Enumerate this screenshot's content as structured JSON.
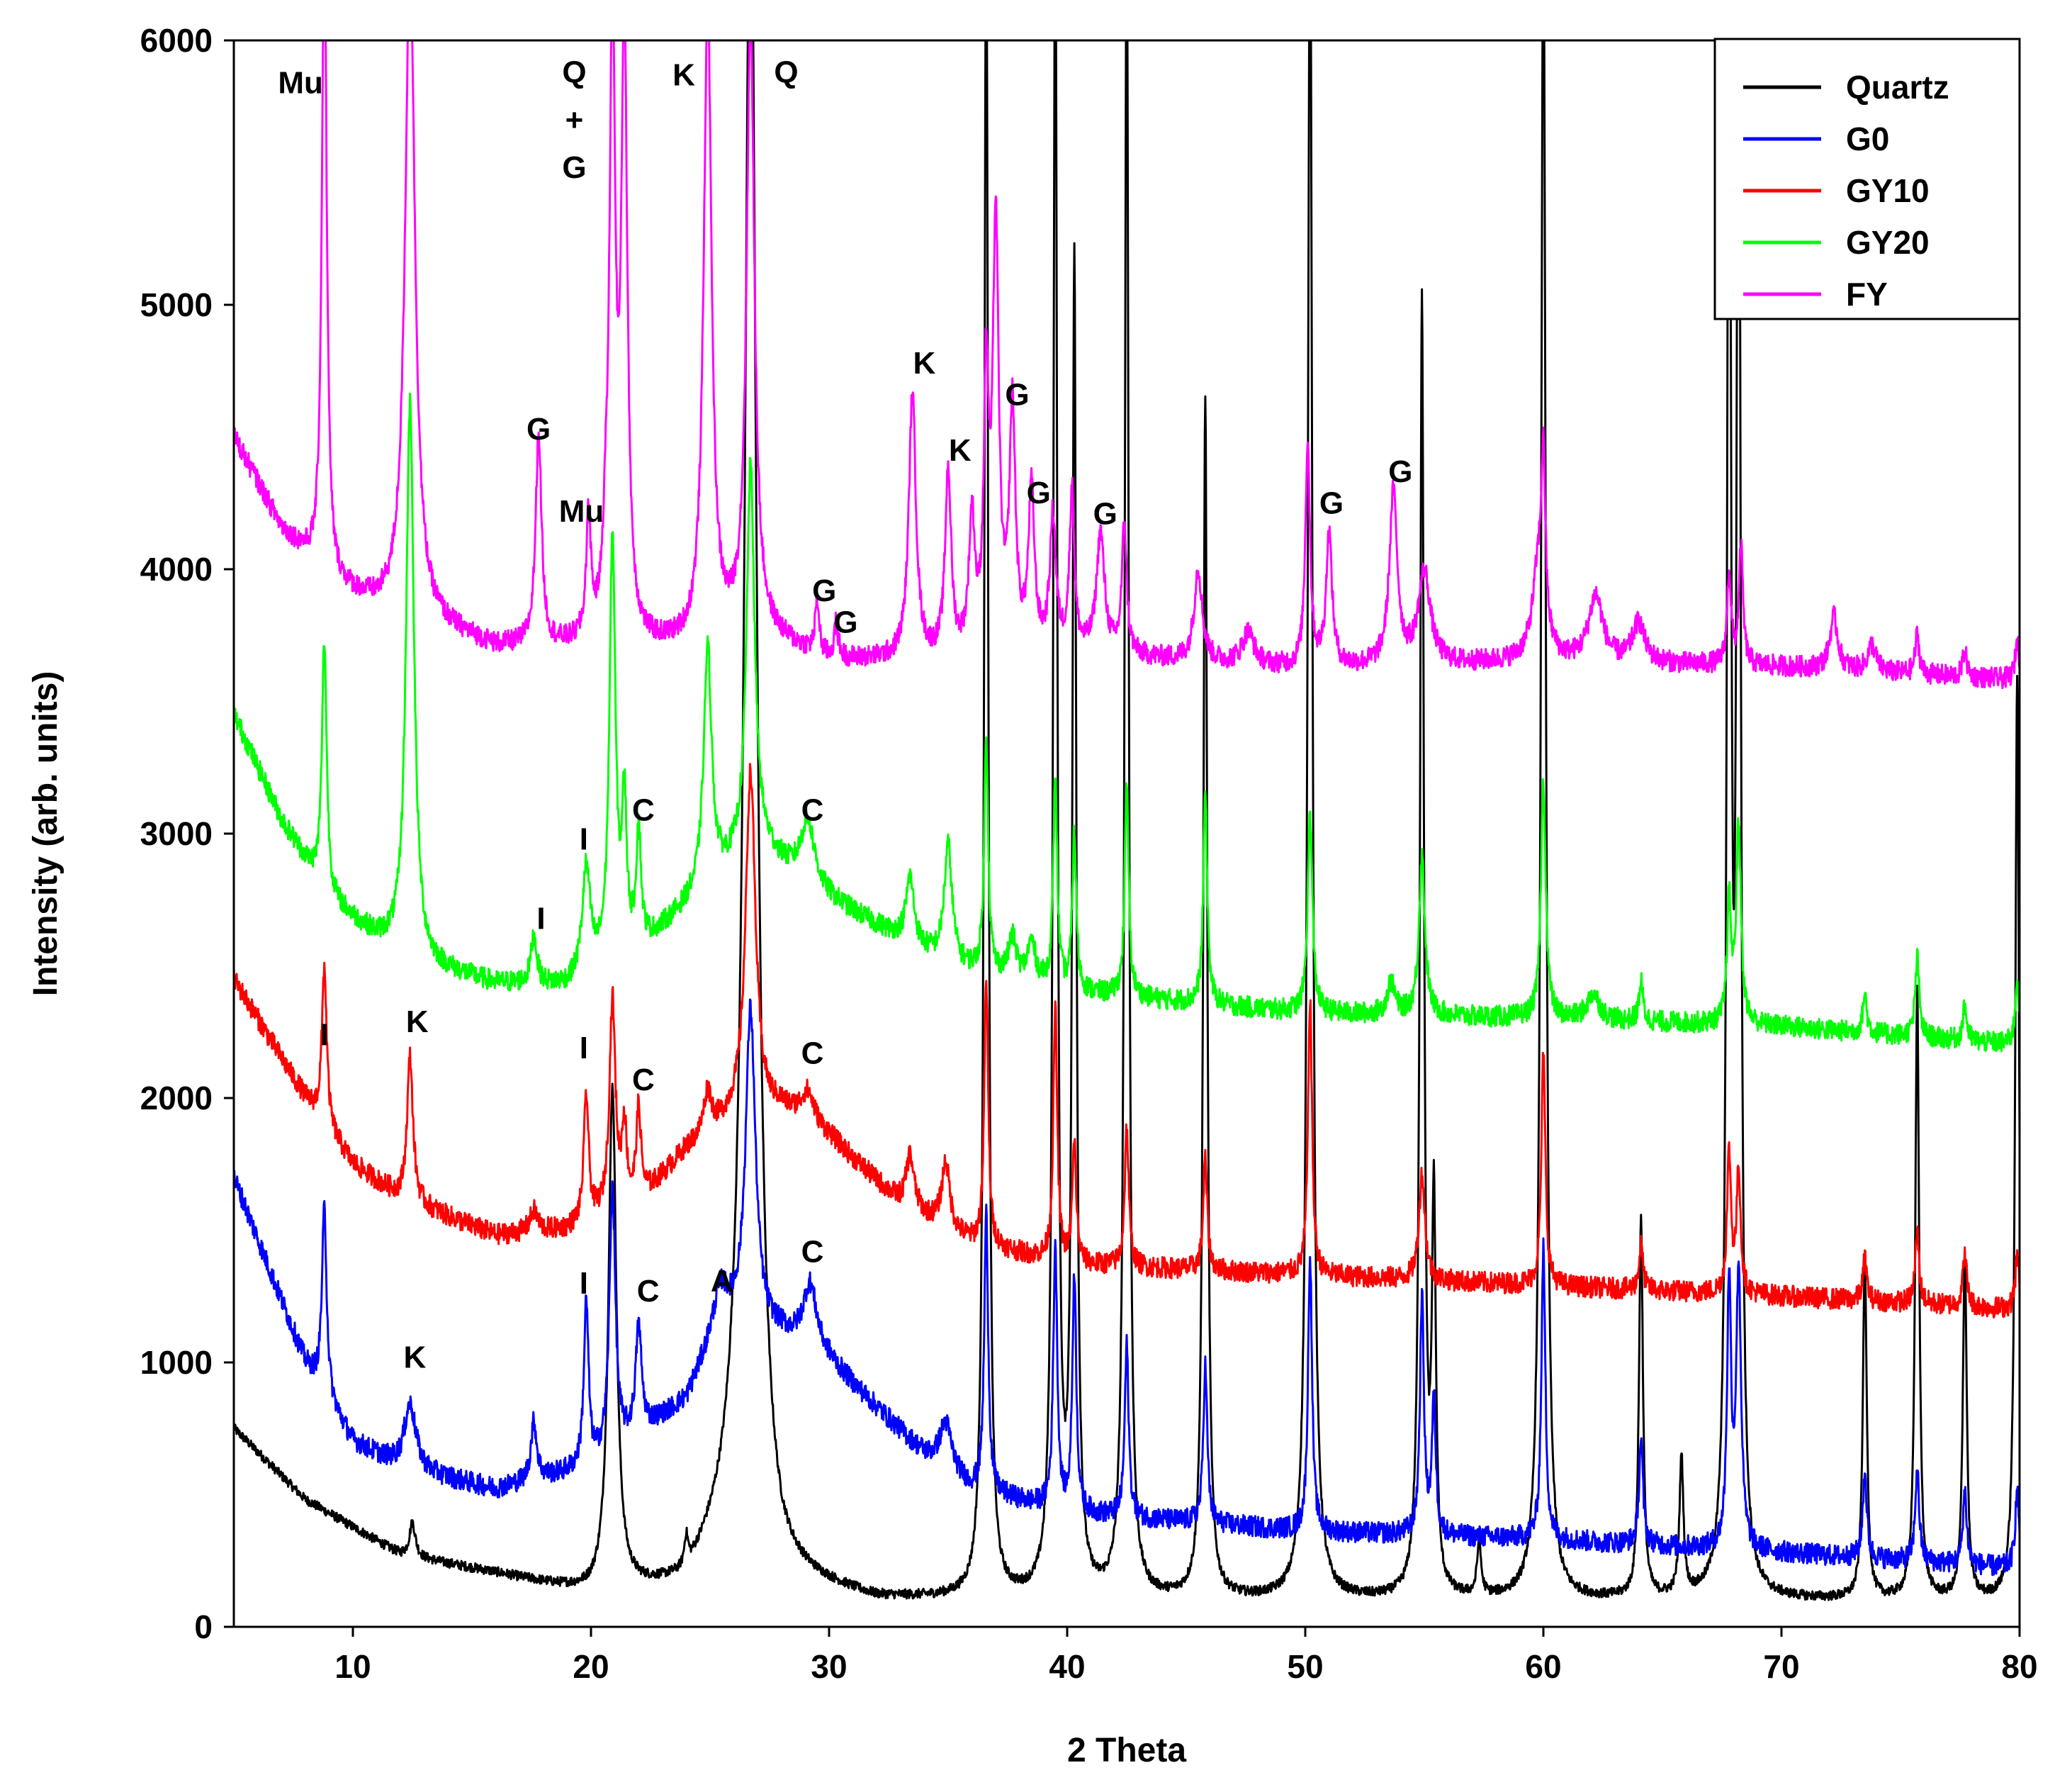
{
  "chart_data": {
    "type": "line",
    "title": "",
    "xlabel": "2 Theta",
    "ylabel": "Intensity (arb. units)",
    "xlim": [
      5,
      80
    ],
    "ylim": [
      0,
      6000
    ],
    "x_ticks": [
      10,
      20,
      30,
      40,
      50,
      60,
      70,
      80
    ],
    "y_ticks": [
      0,
      1000,
      2000,
      3000,
      4000,
      5000,
      6000
    ],
    "grid": false,
    "legend_position": "top-right",
    "series": [
      {
        "name": "Quartz",
        "color": "#000000",
        "baseline": [
          [
            5,
            750
          ],
          [
            8,
            480
          ],
          [
            12,
            270
          ],
          [
            16,
            200
          ],
          [
            20,
            120
          ],
          [
            24,
            150
          ],
          [
            26,
            400
          ],
          [
            28,
            180
          ],
          [
            32,
            100
          ],
          [
            80,
            100
          ]
        ],
        "peaks": [
          [
            12.5,
            130,
            0.15
          ],
          [
            20.9,
            1900,
            0.2
          ],
          [
            24.0,
            120,
            0.1
          ],
          [
            26.7,
            6500,
            0.3
          ],
          [
            36.6,
            6500,
            0.1
          ],
          [
            39.5,
            6500,
            0.1
          ],
          [
            40.3,
            5000,
            0.1
          ],
          [
            42.5,
            6500,
            0.1
          ],
          [
            45.8,
            4550,
            0.1
          ],
          [
            50.2,
            6500,
            0.12
          ],
          [
            54.9,
            4900,
            0.1
          ],
          [
            55.4,
            1450,
            0.1
          ],
          [
            57.3,
            200,
            0.1
          ],
          [
            60.0,
            6500,
            0.12
          ],
          [
            64.1,
            1430,
            0.1
          ],
          [
            65.8,
            520,
            0.1
          ],
          [
            67.8,
            6500,
            0.1
          ],
          [
            68.2,
            6500,
            0.1
          ],
          [
            73.5,
            1280,
            0.1
          ],
          [
            75.7,
            2300,
            0.1
          ],
          [
            77.7,
            1300,
            0.1
          ],
          [
            79.9,
            3500,
            0.1
          ]
        ],
        "noise": 18
      },
      {
        "name": "G0",
        "color": "#0000ff",
        "baseline": [
          [
            5,
            1700
          ],
          [
            8,
            1000
          ],
          [
            10,
            700
          ],
          [
            12,
            600
          ],
          [
            16,
            520
          ],
          [
            20,
            600
          ],
          [
            24,
            850
          ],
          [
            25.5,
            1150
          ],
          [
            28,
            1100
          ],
          [
            30,
            1000
          ],
          [
            34,
            650
          ],
          [
            36,
            520
          ],
          [
            40,
            430
          ],
          [
            50,
            360
          ],
          [
            60,
            330
          ],
          [
            70,
            280
          ],
          [
            80,
            220
          ]
        ],
        "peaks": [
          [
            8.8,
            700,
            0.12
          ],
          [
            12.4,
            250,
            0.3
          ],
          [
            17.6,
            220,
            0.15
          ],
          [
            19.8,
            620,
            0.12
          ],
          [
            20.9,
            1000,
            0.15
          ],
          [
            22.0,
            400,
            0.15
          ],
          [
            25.4,
            120,
            0.4
          ],
          [
            26.7,
            1200,
            0.25
          ],
          [
            29.2,
            250,
            0.35
          ],
          [
            34.9,
            180,
            0.3
          ],
          [
            36.6,
            1050,
            0.1
          ],
          [
            39.5,
            1000,
            0.1
          ],
          [
            40.3,
            900,
            0.1
          ],
          [
            42.5,
            650,
            0.1
          ],
          [
            45.8,
            600,
            0.1
          ],
          [
            50.2,
            1050,
            0.1
          ],
          [
            54.9,
            900,
            0.1
          ],
          [
            55.4,
            500,
            0.1
          ],
          [
            60.0,
            1100,
            0.1
          ],
          [
            64.1,
            400,
            0.1
          ],
          [
            67.8,
            1000,
            0.1
          ],
          [
            68.2,
            1050,
            0.12
          ],
          [
            73.5,
            330,
            0.1
          ],
          [
            75.7,
            350,
            0.1
          ],
          [
            77.7,
            280,
            0.1
          ],
          [
            79.9,
            300,
            0.1
          ]
        ],
        "noise": 40
      },
      {
        "name": "GY10",
        "color": "#ff0000",
        "baseline": [
          [
            5,
            2450
          ],
          [
            8,
            2000
          ],
          [
            10,
            1750
          ],
          [
            12,
            1620
          ],
          [
            16,
            1480
          ],
          [
            19,
            1500
          ],
          [
            22,
            1600
          ],
          [
            24,
            1800
          ],
          [
            26,
            1920
          ],
          [
            28,
            1950
          ],
          [
            30,
            1850
          ],
          [
            33,
            1600
          ],
          [
            36,
            1450
          ],
          [
            40,
            1370
          ],
          [
            50,
            1330
          ],
          [
            60,
            1290
          ],
          [
            70,
            1250
          ],
          [
            80,
            1200
          ]
        ],
        "peaks": [
          [
            8.8,
            600,
            0.12
          ],
          [
            12.4,
            550,
            0.15
          ],
          [
            17.6,
            80,
            0.2
          ],
          [
            19.8,
            480,
            0.12
          ],
          [
            20.9,
            800,
            0.15
          ],
          [
            21.4,
            300,
            0.12
          ],
          [
            22.0,
            350,
            0.12
          ],
          [
            24.9,
            160,
            0.2
          ],
          [
            26.7,
            1300,
            0.25
          ],
          [
            29.1,
            120,
            0.35
          ],
          [
            33.4,
            200,
            0.2
          ],
          [
            34.9,
            250,
            0.2
          ],
          [
            36.6,
            1000,
            0.1
          ],
          [
            39.5,
            950,
            0.1
          ],
          [
            40.3,
            450,
            0.1
          ],
          [
            42.5,
            530,
            0.1
          ],
          [
            45.8,
            420,
            0.1
          ],
          [
            50.2,
            1050,
            0.1
          ],
          [
            54.9,
            400,
            0.15
          ],
          [
            60.0,
            880,
            0.1
          ],
          [
            64.1,
            170,
            0.1
          ],
          [
            67.8,
            530,
            0.1
          ],
          [
            68.2,
            470,
            0.1
          ],
          [
            73.5,
            160,
            0.1
          ],
          [
            75.7,
            270,
            0.1
          ],
          [
            77.7,
            200,
            0.1
          ],
          [
            79.9,
            200,
            0.1
          ]
        ],
        "noise": 40
      },
      {
        "name": "GY20",
        "color": "#00ff00",
        "baseline": [
          [
            5,
            3450
          ],
          [
            7,
            3050
          ],
          [
            9,
            2750
          ],
          [
            11,
            2600
          ],
          [
            13,
            2500
          ],
          [
            16,
            2430
          ],
          [
            19,
            2420
          ],
          [
            22,
            2550
          ],
          [
            25,
            2800
          ],
          [
            27,
            2950
          ],
          [
            29,
            2800
          ],
          [
            32,
            2650
          ],
          [
            35,
            2500
          ],
          [
            40,
            2400
          ],
          [
            50,
            2320
          ],
          [
            60,
            2300
          ],
          [
            70,
            2270
          ],
          [
            80,
            2200
          ]
        ],
        "peaks": [
          [
            8.8,
            950,
            0.12
          ],
          [
            12.4,
            2100,
            0.2
          ],
          [
            17.6,
            180,
            0.15
          ],
          [
            19.8,
            400,
            0.2
          ],
          [
            20.9,
            1600,
            0.15
          ],
          [
            21.4,
            550,
            0.12
          ],
          [
            22.0,
            450,
            0.12
          ],
          [
            24.9,
            900,
            0.2
          ],
          [
            26.7,
            1450,
            0.2
          ],
          [
            29.1,
            250,
            0.35
          ],
          [
            33.4,
            250,
            0.2
          ],
          [
            35.0,
            450,
            0.2
          ],
          [
            36.6,
            900,
            0.1
          ],
          [
            37.7,
            150,
            0.2
          ],
          [
            38.5,
            150,
            0.2
          ],
          [
            39.5,
            800,
            0.1
          ],
          [
            40.3,
            600,
            0.1
          ],
          [
            42.5,
            800,
            0.1
          ],
          [
            45.8,
            800,
            0.1
          ],
          [
            50.2,
            750,
            0.12
          ],
          [
            53.6,
            120,
            0.2
          ],
          [
            54.9,
            600,
            0.15
          ],
          [
            60.0,
            900,
            0.12
          ],
          [
            62.1,
            100,
            0.3
          ],
          [
            64.1,
            150,
            0.1
          ],
          [
            67.8,
            450,
            0.1
          ],
          [
            68.2,
            750,
            0.12
          ],
          [
            73.5,
            150,
            0.1
          ],
          [
            75.7,
            300,
            0.1
          ],
          [
            77.7,
            130,
            0.1
          ],
          [
            79.9,
            250,
            0.1
          ]
        ],
        "noise": 40
      },
      {
        "name": "FY",
        "color": "#ff00ff",
        "baseline": [
          [
            5,
            4500
          ],
          [
            7,
            4150
          ],
          [
            9,
            3950
          ],
          [
            11,
            3850
          ],
          [
            13,
            3800
          ],
          [
            16,
            3700
          ],
          [
            20,
            3700
          ],
          [
            24,
            3700
          ],
          [
            27,
            3750
          ],
          [
            30,
            3650
          ],
          [
            35,
            3650
          ],
          [
            40,
            3680
          ],
          [
            45,
            3650
          ],
          [
            50,
            3620
          ],
          [
            60,
            3650
          ],
          [
            70,
            3630
          ],
          [
            80,
            3580
          ]
        ],
        "peaks": [
          [
            8.8,
            2500,
            0.12
          ],
          [
            12.4,
            2500,
            0.25
          ],
          [
            17.8,
            800,
            0.15
          ],
          [
            19.9,
            450,
            0.12
          ],
          [
            20.6,
            200,
            0.12
          ],
          [
            20.9,
            2300,
            0.15
          ],
          [
            21.4,
            2300,
            0.15
          ],
          [
            24.9,
            2400,
            0.2
          ],
          [
            26.7,
            2300,
            0.2
          ],
          [
            29.5,
            200,
            0.1
          ],
          [
            30.3,
            130,
            0.1
          ],
          [
            33.5,
            1000,
            0.18
          ],
          [
            35.0,
            700,
            0.15
          ],
          [
            36.0,
            500,
            0.15
          ],
          [
            36.6,
            1000,
            0.12
          ],
          [
            37.0,
            1600,
            0.15
          ],
          [
            37.7,
            900,
            0.15
          ],
          [
            38.5,
            600,
            0.15
          ],
          [
            39.4,
            500,
            0.15
          ],
          [
            40.2,
            600,
            0.12
          ],
          [
            41.4,
            450,
            0.2
          ],
          [
            42.4,
            500,
            0.12
          ],
          [
            45.5,
            350,
            0.2
          ],
          [
            47.6,
            120,
            0.3
          ],
          [
            50.1,
            850,
            0.12
          ],
          [
            51.0,
            500,
            0.15
          ],
          [
            53.7,
            650,
            0.2
          ],
          [
            55.0,
            350,
            0.3
          ],
          [
            59.8,
            350,
            0.3
          ],
          [
            60.0,
            600,
            0.1
          ],
          [
            62.2,
            250,
            0.35
          ],
          [
            64.0,
            150,
            0.3
          ],
          [
            67.8,
            350,
            0.1
          ],
          [
            68.3,
            450,
            0.1
          ],
          [
            72.2,
            200,
            0.2
          ],
          [
            73.8,
            100,
            0.2
          ],
          [
            75.7,
            150,
            0.1
          ],
          [
            77.7,
            100,
            0.1
          ],
          [
            79.9,
            150,
            0.1
          ]
        ],
        "noise": 40
      }
    ],
    "annotations": [
      {
        "text": "Mu",
        "x": 7.8,
        "y": 5800
      },
      {
        "text": "Q",
        "x": 19.3,
        "y": 5840
      },
      {
        "text": "+",
        "x": 19.3,
        "y": 5660
      },
      {
        "text": "G",
        "x": 19.3,
        "y": 5480
      },
      {
        "text": "K",
        "x": 23.9,
        "y": 5830
      },
      {
        "text": "Q",
        "x": 28.2,
        "y": 5840
      },
      {
        "text": "G",
        "x": 17.8,
        "y": 4490
      },
      {
        "text": "Mu",
        "x": 19.6,
        "y": 4180
      },
      {
        "text": "K",
        "x": 34.0,
        "y": 4740
      },
      {
        "text": "G",
        "x": 37.9,
        "y": 4620
      },
      {
        "text": "K",
        "x": 35.5,
        "y": 4410
      },
      {
        "text": "G",
        "x": 38.8,
        "y": 4250
      },
      {
        "text": "G",
        "x": 41.6,
        "y": 4170
      },
      {
        "text": "G",
        "x": 29.8,
        "y": 3880
      },
      {
        "text": "G",
        "x": 30.7,
        "y": 3760
      },
      {
        "text": "G",
        "x": 51.1,
        "y": 4210
      },
      {
        "text": "G",
        "x": 54.0,
        "y": 4330
      },
      {
        "text": "I",
        "x": 19.7,
        "y": 2940
      },
      {
        "text": "C",
        "x": 22.2,
        "y": 3050
      },
      {
        "text": "C",
        "x": 29.3,
        "y": 3050
      },
      {
        "text": "I",
        "x": 17.9,
        "y": 2640
      },
      {
        "text": "I",
        "x": 8.8,
        "y": 2200
      },
      {
        "text": "K",
        "x": 12.7,
        "y": 2250
      },
      {
        "text": "I",
        "x": 19.7,
        "y": 2150
      },
      {
        "text": "C",
        "x": 22.2,
        "y": 2030
      },
      {
        "text": "C",
        "x": 29.3,
        "y": 2130
      },
      {
        "text": "I",
        "x": 19.7,
        "y": 1260
      },
      {
        "text": "C",
        "x": 22.4,
        "y": 1230
      },
      {
        "text": "A",
        "x": 25.5,
        "y": 1270
      },
      {
        "text": "C",
        "x": 29.3,
        "y": 1380
      },
      {
        "text": "K",
        "x": 12.6,
        "y": 980
      }
    ]
  }
}
